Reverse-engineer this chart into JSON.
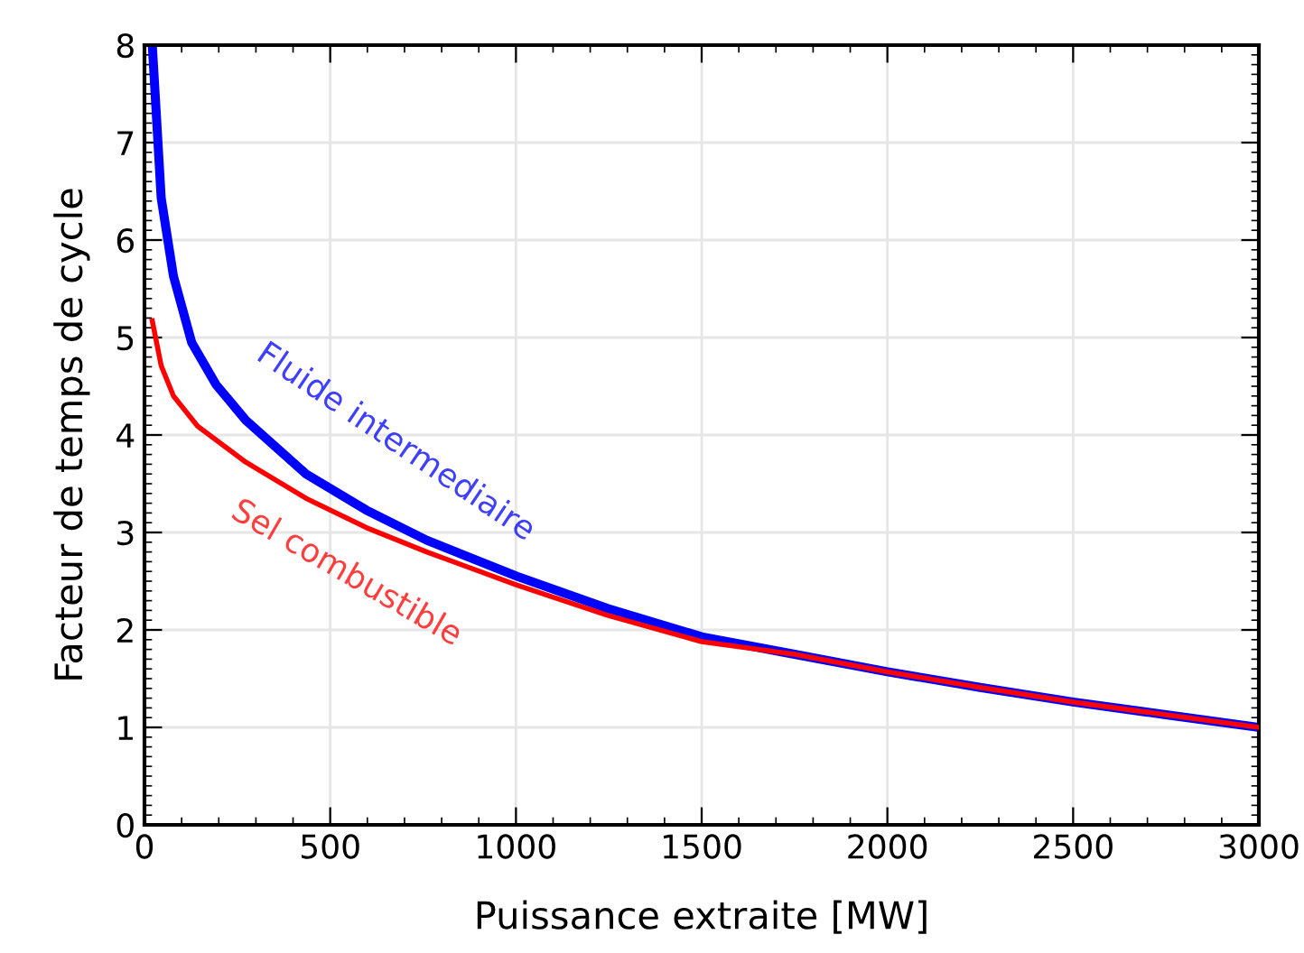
{
  "chart_data": {
    "type": "line",
    "xlabel": "Puissance extraite [MW]",
    "ylabel": "Facteur de temps de cycle",
    "xlim": [
      0,
      3000
    ],
    "xticks": [
      0,
      500,
      1000,
      1500,
      2000,
      2500,
      3000
    ],
    "ylim": [
      0,
      8
    ],
    "yticks": [
      0,
      1,
      2,
      3,
      4,
      5,
      6,
      7,
      8
    ],
    "grid": true,
    "legend": false,
    "marker": "none",
    "line_style": "solid",
    "series": [
      {
        "name": "Fluide intermediaire",
        "color": "#0000ff",
        "x": [
          21,
          45,
          78,
          127,
          192,
          273,
          435,
          597,
          760,
          1003,
          1247,
          1500,
          1750,
          2000,
          2250,
          2500,
          2750,
          3000
        ],
        "values": [
          8,
          6.43,
          5.63,
          4.95,
          4.52,
          4.15,
          3.6,
          3.23,
          2.92,
          2.55,
          2.22,
          1.93,
          1.75,
          1.57,
          1.41,
          1.26,
          1.13,
          1.0
        ]
      },
      {
        "name": "Sel combustible",
        "color": "#ff0000",
        "x": [
          21,
          45,
          78,
          143,
          273,
          435,
          597,
          760,
          1003,
          1247,
          1500,
          1750,
          2000,
          2250,
          2500,
          2750,
          3000
        ],
        "values": [
          5.17,
          4.71,
          4.4,
          4.09,
          3.72,
          3.35,
          3.05,
          2.8,
          2.46,
          2.15,
          1.88,
          1.75,
          1.57,
          1.41,
          1.26,
          1.13,
          1.0
        ]
      }
    ]
  }
}
